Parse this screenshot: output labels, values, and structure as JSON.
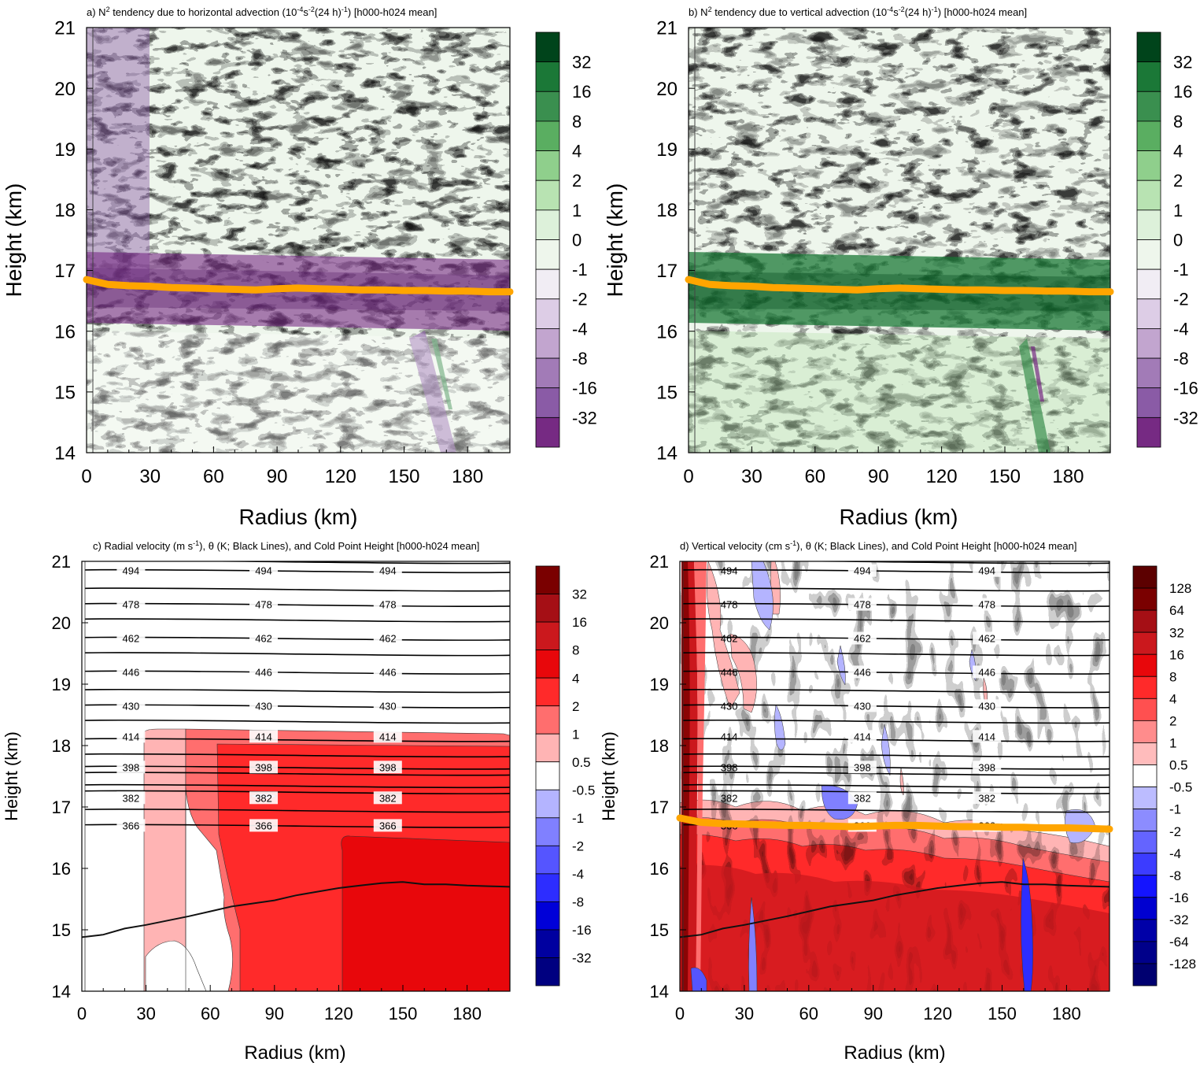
{
  "panels": [
    {
      "id": "a",
      "title_parts": [
        "a) N",
        "2",
        " tendency due to horizontal advection (10",
        "-4",
        "s",
        "-2",
        "(24 h)",
        "-1",
        ") [h000-h024 mean]"
      ],
      "xlabel": "Radius (km)",
      "ylabel": "Height (km)",
      "xticks": [
        "0",
        "30",
        "60",
        "90",
        "120",
        "150",
        "180"
      ],
      "yticks": [
        "14",
        "15",
        "16",
        "17",
        "18",
        "19",
        "20",
        "21"
      ],
      "colorbar": [
        "32",
        "16",
        "8",
        "4",
        "2",
        "1",
        "0",
        "-1",
        "-2",
        "-4",
        "-8",
        "-16",
        "-32"
      ]
    },
    {
      "id": "b",
      "title_parts": [
        "b) N",
        "2",
        " tendency due to vertical advection (10",
        "-4",
        "s",
        "-2",
        "(24 h)",
        "-1",
        ") [h000-h024 mean]"
      ],
      "xlabel": "Radius (km)",
      "ylabel": "Height (km)",
      "xticks": [
        "0",
        "30",
        "60",
        "90",
        "120",
        "150",
        "180"
      ],
      "yticks": [
        "14",
        "15",
        "16",
        "17",
        "18",
        "19",
        "20",
        "21"
      ],
      "colorbar": [
        "32",
        "16",
        "8",
        "4",
        "2",
        "1",
        "0",
        "-1",
        "-2",
        "-4",
        "-8",
        "-16",
        "-32"
      ]
    },
    {
      "id": "c",
      "title_parts": [
        "c) Radial velocity (m s",
        "-1",
        "), θ (K; Black Lines), and Cold Point Height [h000-h024 mean]"
      ],
      "xlabel": "Radius (km)",
      "ylabel": "Height (km)",
      "xticks": [
        "0",
        "30",
        "60",
        "90",
        "120",
        "150",
        "180"
      ],
      "yticks": [
        "14",
        "15",
        "16",
        "17",
        "18",
        "19",
        "20",
        "21"
      ],
      "colorbar": [
        "32",
        "16",
        "8",
        "4",
        "2",
        "1",
        "0.5",
        "-0.5",
        "-1",
        "-2",
        "-4",
        "-8",
        "-16",
        "-32"
      ],
      "contour_labels": [
        "494",
        "478",
        "462",
        "446",
        "430",
        "414",
        "398",
        "382",
        "366"
      ]
    },
    {
      "id": "d",
      "title_parts": [
        "d) Vertical velocity (cm s",
        "-1",
        "), θ (K; Black Lines), and Cold Point Height [h000-h024 mean]"
      ],
      "xlabel": "Radius (km)",
      "ylabel": "Height (km)",
      "xticks": [
        "0",
        "30",
        "60",
        "90",
        "120",
        "150",
        "180"
      ],
      "yticks": [
        "14",
        "15",
        "16",
        "17",
        "18",
        "19",
        "20",
        "21"
      ],
      "colorbar": [
        "128",
        "64",
        "32",
        "16",
        "8",
        "4",
        "2",
        "1",
        "0.5",
        "-0.5",
        "-1",
        "-2",
        "-4",
        "-8",
        "-16",
        "-32",
        "-64",
        "-128"
      ],
      "contour_labels": [
        "494",
        "478",
        "462",
        "446",
        "430",
        "414",
        "398",
        "382",
        "366"
      ]
    }
  ],
  "colors": {
    "cold_point": "#ffa500",
    "green_scale": [
      "#00441b",
      "#1b7837",
      "#3a8f4f",
      "#5aae61",
      "#8fcf8c",
      "#b8e3b2",
      "#ddf1da",
      "#eef6ec",
      "#f1edf4",
      "#ddcde6",
      "#c2a5cf",
      "#a27bb7",
      "#8a5ba6",
      "#762a83",
      "#40004b"
    ],
    "red_scale": [
      "#7a0000",
      "#a50f15",
      "#cb181d",
      "#e8070b",
      "#ff2a2a",
      "#ff6e6e",
      "#ffb4b4",
      "#ffffff",
      "#b4b4ff",
      "#8080ff",
      "#5555ff",
      "#2d2dff",
      "#0000d8",
      "#0000a0",
      "#000080"
    ]
  },
  "chart_data": [
    {
      "type": "heatmap",
      "title": "a) N2 tendency due to horizontal advection (10-4s-2(24 h)-1) [h000-h024 mean]",
      "xlabel": "Radius (km)",
      "ylabel": "Height (km)",
      "xlim": [
        0,
        200
      ],
      "ylim": [
        14,
        21
      ],
      "color_levels": [
        -32,
        -16,
        -8,
        -4,
        -2,
        -1,
        0,
        1,
        2,
        4,
        8,
        16,
        32
      ],
      "cold_point_height": {
        "radius": [
          0,
          10,
          20,
          30,
          40,
          50,
          60,
          70,
          80,
          90,
          100,
          110,
          120,
          130,
          140,
          150,
          160,
          170,
          180,
          190,
          200
        ],
        "height": [
          16.85,
          16.77,
          16.75,
          16.74,
          16.72,
          16.71,
          16.7,
          16.69,
          16.68,
          16.7,
          16.71,
          16.7,
          16.69,
          16.68,
          16.68,
          16.67,
          16.67,
          16.66,
          16.66,
          16.65,
          16.65
        ]
      },
      "features": [
        {
          "label": "negative band near cold point",
          "radius": [
            0,
            200
          ],
          "height": [
            16.0,
            17.2
          ]
        },
        {
          "label": "positive bands above cold point",
          "radius": [
            20,
            200
          ],
          "height": [
            17.2,
            21.0
          ]
        }
      ]
    },
    {
      "type": "heatmap",
      "title": "b) N2 tendency due to vertical advection (10-4s-2(24 h)-1) [h000-h024 mean]",
      "xlabel": "Radius (km)",
      "ylabel": "Height (km)",
      "xlim": [
        0,
        200
      ],
      "ylim": [
        14,
        21
      ],
      "color_levels": [
        -32,
        -16,
        -8,
        -4,
        -2,
        -1,
        0,
        1,
        2,
        4,
        8,
        16,
        32
      ],
      "cold_point_height": {
        "radius": [
          0,
          10,
          20,
          30,
          40,
          50,
          60,
          70,
          80,
          90,
          100,
          110,
          120,
          130,
          140,
          150,
          160,
          170,
          180,
          190,
          200
        ],
        "height": [
          16.85,
          16.77,
          16.75,
          16.74,
          16.72,
          16.71,
          16.7,
          16.69,
          16.68,
          16.7,
          16.71,
          16.7,
          16.69,
          16.68,
          16.68,
          16.67,
          16.67,
          16.66,
          16.66,
          16.65,
          16.65
        ]
      },
      "features": [
        {
          "label": "positive band near cold point",
          "radius": [
            0,
            200
          ],
          "height": [
            16.0,
            17.2
          ]
        },
        {
          "label": "negative bands above cold point",
          "radius": [
            0,
            200
          ],
          "height": [
            17.2,
            21.0
          ]
        }
      ]
    },
    {
      "type": "heatmap",
      "title": "c) Radial velocity (m s-1), θ (K; Black Lines), and Cold Point Height [h000-h024 mean]",
      "xlabel": "Radius (km)",
      "ylabel": "Height (km)",
      "xlim": [
        0,
        200
      ],
      "ylim": [
        14,
        21
      ],
      "color_levels": [
        -32,
        -16,
        -8,
        -4,
        -2,
        -1,
        -0.5,
        0.5,
        1,
        2,
        4,
        8,
        16,
        32
      ],
      "theta_contours_K": [
        366,
        382,
        398,
        414,
        430,
        446,
        462,
        478,
        494
      ],
      "theta_contour_heights_km": [
        16.7,
        17.55,
        17.65,
        18.1,
        18.65,
        19.2,
        19.75,
        20.3,
        20.85
      ],
      "regions": [
        {
          "range_ms": "0.5-1",
          "radius": [
            30,
            50
          ],
          "height": [
            14.0,
            17.0
          ]
        },
        {
          "range_ms": "1-2",
          "radius": [
            50,
            65
          ],
          "height": [
            14.0,
            17.0
          ]
        },
        {
          "range_ms": "2-4",
          "radius": [
            65,
            120
          ],
          "height": [
            14.0,
            16.9
          ]
        },
        {
          "range_ms": "4-8",
          "radius": [
            120,
            200
          ],
          "height": [
            14.0,
            16.4
          ]
        }
      ],
      "lower_line": {
        "radius": [
          0,
          10,
          20,
          30,
          40,
          50,
          60,
          70,
          80,
          90,
          100,
          110,
          120,
          130,
          140,
          150,
          160,
          170,
          180,
          190,
          200
        ],
        "height": [
          14.88,
          14.92,
          15.02,
          15.08,
          15.15,
          15.22,
          15.3,
          15.38,
          15.43,
          15.48,
          15.56,
          15.62,
          15.68,
          15.72,
          15.76,
          15.78,
          15.74,
          15.74,
          15.72,
          15.71,
          15.7
        ]
      }
    },
    {
      "type": "heatmap",
      "title": "d) Vertical velocity (cm s-1), θ (K; Black Lines), and Cold Point Height [h000-h024 mean]",
      "xlabel": "Radius (km)",
      "ylabel": "Height (km)",
      "xlim": [
        0,
        200
      ],
      "ylim": [
        14,
        21
      ],
      "color_levels": [
        -128,
        -64,
        -32,
        -16,
        -8,
        -4,
        -2,
        -1,
        -0.5,
        0.5,
        1,
        2,
        4,
        8,
        16,
        32,
        64,
        128
      ],
      "theta_contours_K": [
        366,
        382,
        398,
        414,
        430,
        446,
        462,
        478,
        494
      ],
      "theta_contour_heights_km": [
        16.7,
        17.55,
        17.65,
        18.1,
        18.65,
        19.2,
        19.75,
        20.3,
        20.85
      ],
      "cold_point_height": {
        "radius": [
          0,
          10,
          20,
          30,
          40,
          50,
          60,
          70,
          80,
          90,
          100,
          110,
          120,
          130,
          140,
          150,
          160,
          170,
          180,
          190,
          200
        ],
        "height": [
          16.82,
          16.75,
          16.73,
          16.72,
          16.71,
          16.7,
          16.7,
          16.69,
          16.68,
          16.69,
          16.7,
          16.7,
          16.69,
          16.68,
          16.68,
          16.67,
          16.67,
          16.66,
          16.66,
          16.65,
          16.64
        ]
      },
      "lower_line": {
        "radius": [
          0,
          10,
          20,
          30,
          40,
          50,
          60,
          70,
          80,
          90,
          100,
          110,
          120,
          130,
          140,
          150,
          160,
          170,
          180,
          190,
          200
        ],
        "height": [
          14.88,
          14.92,
          15.02,
          15.08,
          15.15,
          15.22,
          15.3,
          15.38,
          15.43,
          15.48,
          15.56,
          15.62,
          15.68,
          15.72,
          15.76,
          15.78,
          15.74,
          15.74,
          15.72,
          15.71,
          15.7
        ]
      }
    }
  ]
}
